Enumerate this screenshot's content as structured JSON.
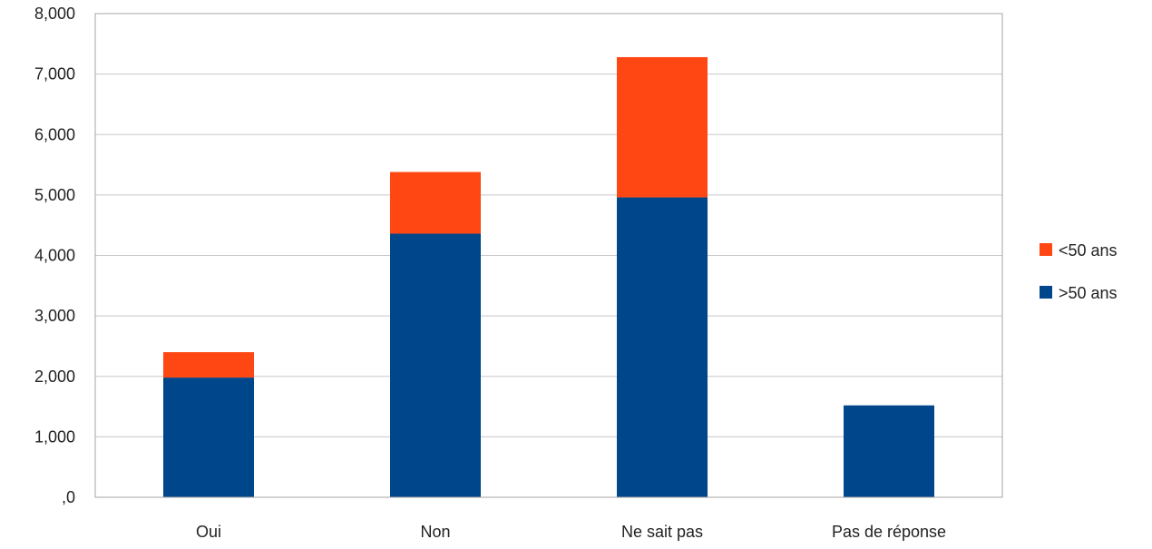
{
  "chart_data": {
    "type": "bar",
    "stacked": true,
    "categories": [
      "Oui",
      "Non",
      "Ne sait pas",
      "Pas de réponse"
    ],
    "series": [
      {
        "name": ">50 ans",
        "values": [
          1980,
          4360,
          4960,
          1520
        ],
        "color": "#00468b"
      },
      {
        "name": "<50 ans",
        "values": [
          420,
          1020,
          2320,
          0
        ],
        "color": "#ff4713"
      }
    ],
    "ylim": [
      0,
      8000
    ],
    "yticks": [
      0,
      1000,
      2000,
      3000,
      4000,
      5000,
      6000,
      7000,
      8000
    ],
    "ytick_labels": [
      ",0",
      "1,000",
      "2,000",
      "3,000",
      "4,000",
      "5,000",
      "6,000",
      "7,000",
      "8,000"
    ],
    "grid": true,
    "legend_position": "right",
    "legend_order": [
      "<50 ans",
      ">50 ans"
    ],
    "colors": {
      "grid": "#c8c8c8",
      "axis": "#a6a6a6",
      "text": "#222222"
    }
  }
}
